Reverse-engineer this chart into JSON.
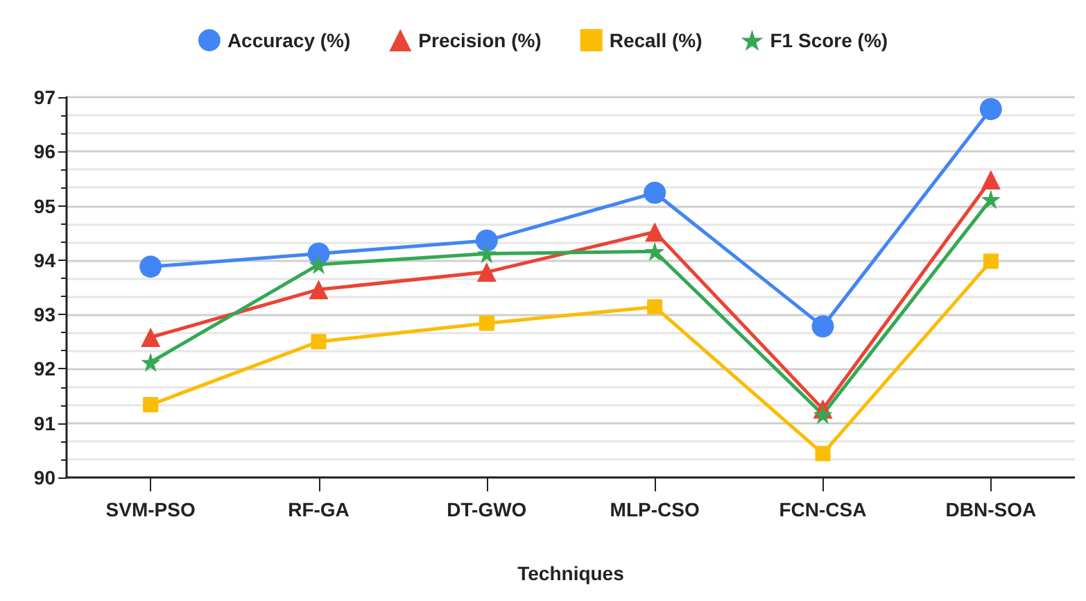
{
  "chart_data": {
    "type": "line",
    "xlabel": "Techniques",
    "categories": [
      "SVM-PSO",
      "RF-GA",
      "DT-GWO",
      "MLP-CSO",
      "FCN-CSA",
      "DBN-SOA"
    ],
    "series": [
      {
        "name": "Accuracy (%)",
        "color": "#4285f4",
        "marker": "circle",
        "values": [
          93.88,
          94.12,
          94.36,
          95.24,
          92.78,
          96.78
        ]
      },
      {
        "name": "Precision (%)",
        "color": "#ea4335",
        "marker": "triangle",
        "values": [
          92.58,
          93.46,
          93.78,
          94.52,
          91.26,
          95.48
        ]
      },
      {
        "name": "Recall (%)",
        "color": "#fbbc04",
        "marker": "square",
        "values": [
          91.34,
          92.5,
          92.84,
          93.14,
          90.44,
          93.98
        ]
      },
      {
        "name": "F1 Score (%)",
        "color": "#34a853",
        "marker": "star",
        "values": [
          92.12,
          93.92,
          94.12,
          94.16,
          91.16,
          95.12
        ]
      }
    ],
    "ylim": [
      90,
      97
    ],
    "yticks": [
      90,
      91,
      92,
      93,
      94,
      95,
      96,
      97
    ],
    "grid": "y",
    "legend": "top",
    "line_style": "solid"
  }
}
